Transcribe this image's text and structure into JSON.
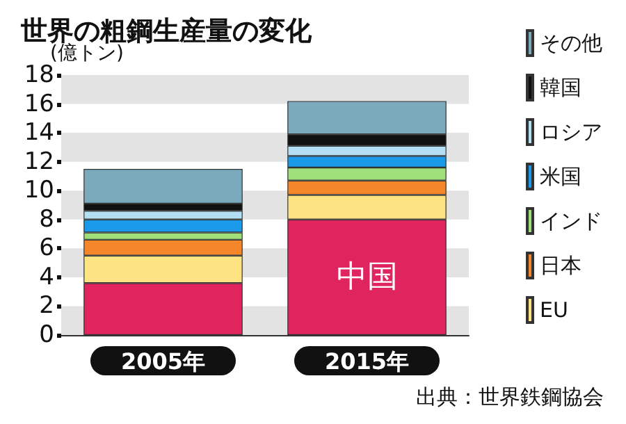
{
  "chart_data": {
    "type": "bar",
    "title": "世界の粗鋼生産量の変化",
    "ylabel": "(億トン)",
    "categories": [
      "2005年",
      "2015年"
    ],
    "stacked": true,
    "series": [
      {
        "name": "中国",
        "color": "#e0245e",
        "values": [
          3.6,
          8.0
        ]
      },
      {
        "name": "EU",
        "color": "#fde381",
        "values": [
          1.9,
          1.7
        ]
      },
      {
        "name": "日本",
        "color": "#f5862a",
        "values": [
          1.1,
          1.0
        ]
      },
      {
        "name": "インド",
        "color": "#9fe07a",
        "values": [
          0.5,
          0.9
        ]
      },
      {
        "name": "米国",
        "color": "#1a9ae8",
        "values": [
          0.9,
          0.8
        ]
      },
      {
        "name": "ロシア",
        "color": "#b3dff5",
        "values": [
          0.6,
          0.7
        ]
      },
      {
        "name": "韓国",
        "color": "#111111",
        "values": [
          0.5,
          0.8
        ]
      },
      {
        "name": "その他",
        "color": "#7aaabb",
        "values": [
          2.4,
          2.3
        ]
      }
    ],
    "ylim": [
      0,
      18
    ],
    "yticks": [
      0,
      2,
      4,
      6,
      8,
      10,
      12,
      14,
      16,
      18
    ],
    "legend": "right",
    "bands": [
      {
        "axis": "y",
        "from": 0,
        "to": 2,
        "color": "#e3e3e3"
      },
      {
        "axis": "y",
        "from": 4,
        "to": 6,
        "color": "#e3e3e3"
      },
      {
        "axis": "y",
        "from": 8,
        "to": 10,
        "color": "#e3e3e3"
      },
      {
        "axis": "y",
        "from": 12,
        "to": 14,
        "color": "#e3e3e3"
      },
      {
        "axis": "y",
        "from": 16,
        "to": 18,
        "color": "#e3e3e3"
      }
    ],
    "annotations": [
      "出典：世界鉄鋼協会"
    ]
  }
}
